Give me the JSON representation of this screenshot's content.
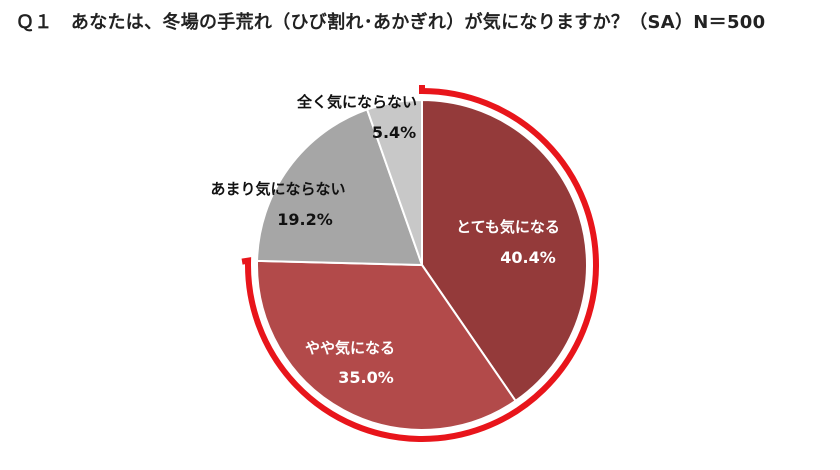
{
  "chart_data": {
    "type": "pie",
    "title": "Ｑ１　あなたは、冬場の手荒れ（ひび割れ･あかぎれ）が気になりますか？（SA）N＝500",
    "categories": [
      "とても気になる",
      "やや気になる",
      "あまり気にならない",
      "全く気にならない"
    ],
    "values": [
      40.4,
      35.0,
      19.2,
      5.4
    ],
    "value_labels": [
      "40.4%",
      "35.0%",
      "19.2%",
      "5.4%"
    ],
    "colors": [
      "#943a3a",
      "#b24a4a",
      "#a6a6a6",
      "#c8c8c8"
    ],
    "highlight_color": "#e8151b",
    "highlighted": [
      "とても気になる",
      "やや気になる"
    ],
    "start": "12 o'clock",
    "direction": "clockwise"
  }
}
